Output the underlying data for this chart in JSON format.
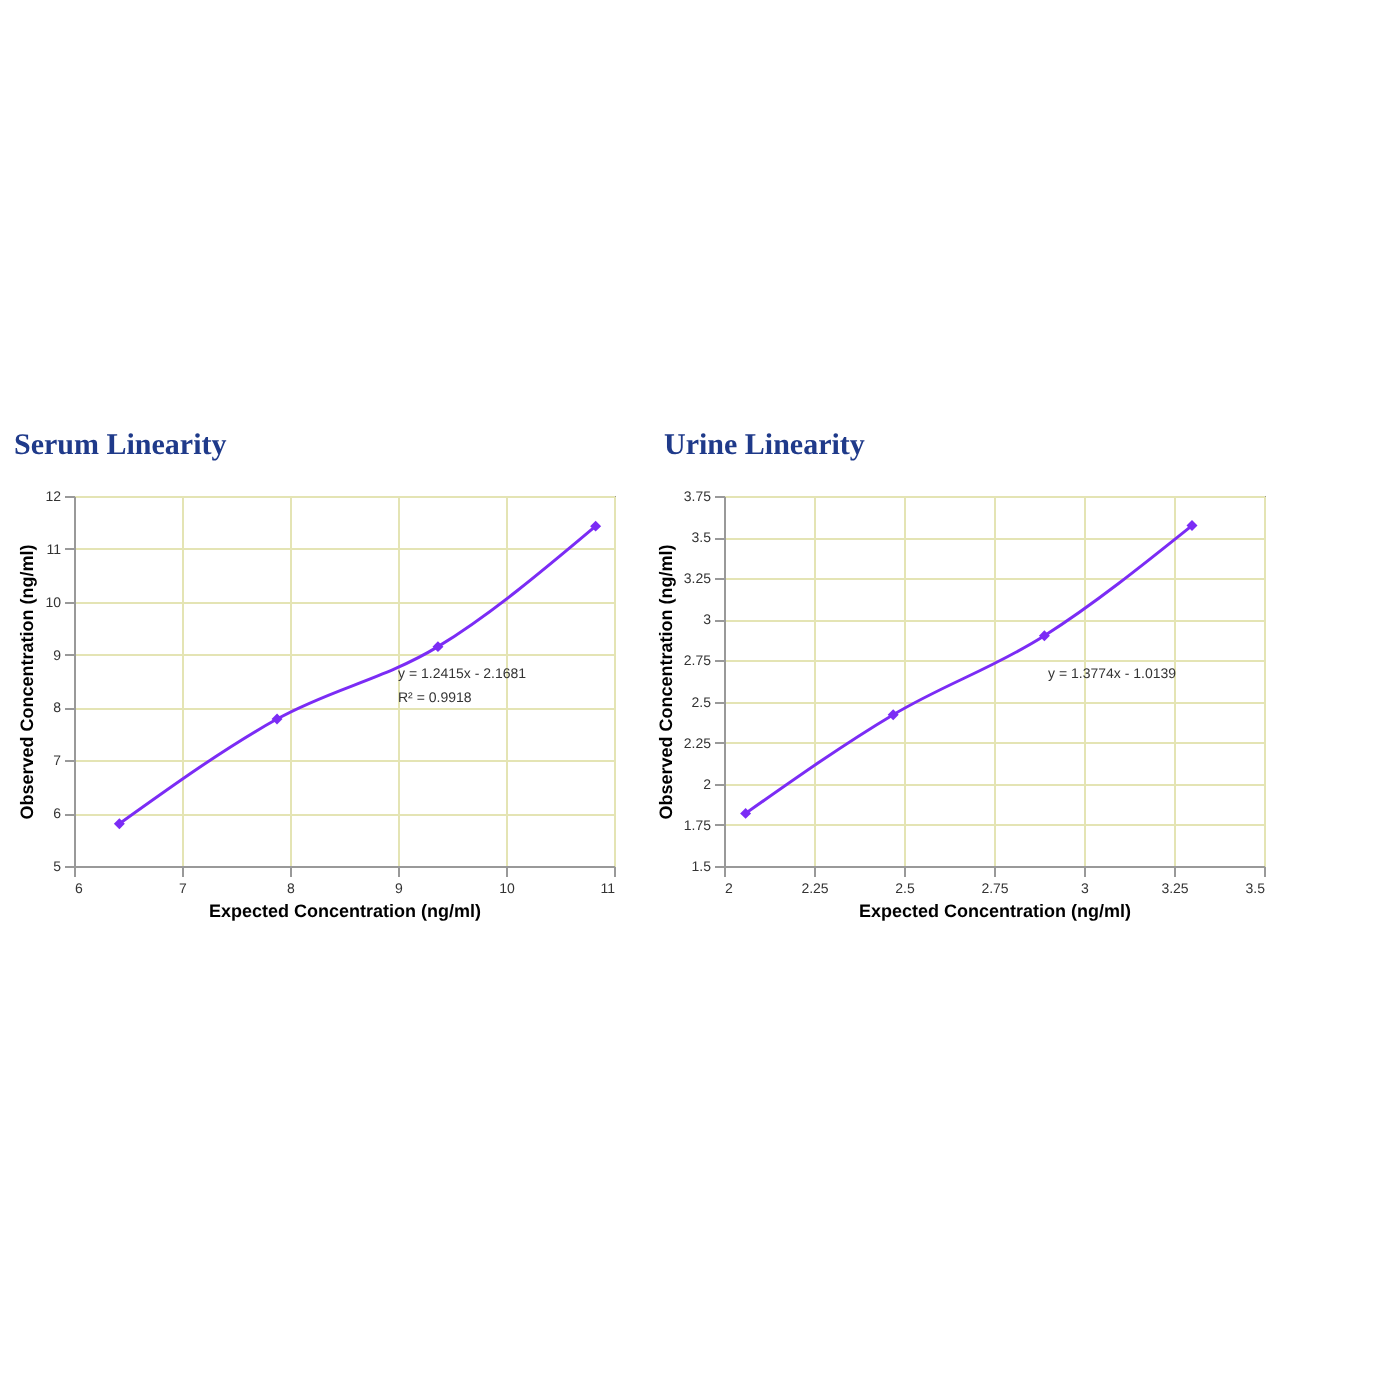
{
  "chart_data": [
    {
      "type": "line",
      "title": "Serum Linearity",
      "xlabel": "Expected Concentration (ng/ml)",
      "ylabel": "Observed Concentration (ng/ml)",
      "annotations": [
        "y = 1.2415x - 2.1681",
        "R² = 0.9918"
      ],
      "x": [
        6.42,
        7.88,
        9.37,
        10.83
      ],
      "series": [
        {
          "color": "#7b2cf5",
          "values": [
            5.8,
            7.78,
            9.15,
            11.43
          ]
        }
      ],
      "xlim": [
        6,
        11
      ],
      "xticks": [
        6,
        7,
        8,
        9,
        10,
        11
      ],
      "ylim": [
        5,
        12
      ],
      "yticks": [
        5,
        6,
        7,
        8,
        9,
        10,
        11,
        12
      ],
      "grid": true,
      "marker": "diamond"
    },
    {
      "type": "line",
      "title": "Urine Linearity",
      "xlabel": "Expected Concentration (ng/ml)",
      "ylabel": "Observed Concentration (ng/ml)",
      "annotations": [
        "y = 1.3774x - 1.0139"
      ],
      "x": [
        2.06,
        2.47,
        2.89,
        3.3
      ],
      "series": [
        {
          "color": "#7b2cf5",
          "values": [
            1.82,
            2.42,
            2.9,
            3.57
          ]
        }
      ],
      "xlim": [
        2,
        3.5
      ],
      "xticks": [
        2,
        2.25,
        2.5,
        2.75,
        3,
        3.25,
        3.5
      ],
      "ylim": [
        1.5,
        3.75
      ],
      "yticks": [
        1.5,
        1.75,
        2,
        2.25,
        2.5,
        2.75,
        3,
        3.25,
        3.5,
        3.75
      ],
      "grid": true,
      "marker": "diamond"
    }
  ]
}
